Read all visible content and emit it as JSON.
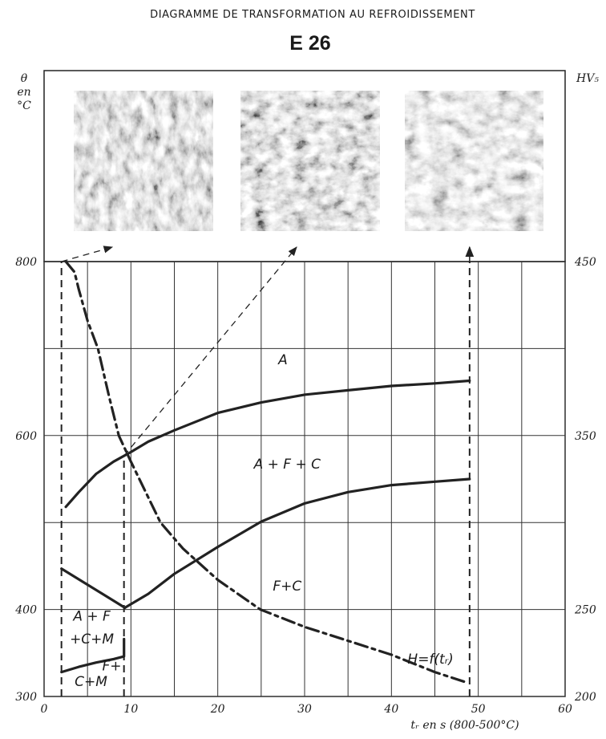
{
  "chart_data": {
    "type": "line",
    "title": "DIAGRAMME DE TRANSFORMATION AU REFROIDISSEMENT",
    "subtitle": "E 26",
    "ylabel": "θ en °C",
    "y2label": "HV₅",
    "xlabel": "tᵣ en s (800-500°C)",
    "xlim": [
      0,
      60
    ],
    "xticks": [
      0,
      10,
      20,
      30,
      40,
      50,
      60
    ],
    "xminorticks": [
      5,
      15,
      25,
      35,
      45,
      55
    ],
    "ylim": [
      300,
      800
    ],
    "yticks": [
      300,
      400,
      500,
      600,
      700,
      800
    ],
    "ytick_labels_shown": [
      300,
      400,
      600,
      800
    ],
    "y2lim": [
      200,
      450
    ],
    "y2ticks": [
      200,
      250,
      350,
      450
    ],
    "grid": true,
    "vlines": [
      2,
      9.2,
      49
    ],
    "series": [
      {
        "color": "#222222",
        "style": "solid",
        "x": [
          2.5,
          4,
          6,
          8,
          10,
          12,
          15,
          20,
          25,
          30,
          35,
          40,
          45,
          49
        ],
        "values": [
          518,
          535,
          556,
          570,
          581,
          593,
          606,
          626,
          638,
          647,
          652,
          657,
          660,
          663
        ]
      },
      {
        "color": "#222222",
        "style": "solid",
        "x": [
          9.3,
          12,
          15,
          20,
          25,
          30,
          35,
          40,
          45,
          49
        ],
        "values": [
          402,
          418,
          441,
          472,
          501,
          522,
          535,
          543,
          547,
          550
        ]
      },
      {
        "color": "#222222",
        "style": "solid",
        "x": [
          2,
          9.3
        ],
        "values": [
          447,
          402
        ]
      },
      {
        "color": "#222222",
        "style": "solid",
        "x": [
          2,
          4,
          6,
          8,
          9.2,
          9.2
        ],
        "values": [
          328,
          334,
          339,
          343,
          346,
          366
        ]
      },
      {
        "color": "#222222",
        "style": "dashdot",
        "axis": "y2",
        "x": [
          2.5,
          3.5,
          4,
          5,
          6.2,
          7.5,
          8.6,
          10,
          13.4,
          16,
          20,
          24.9,
          30,
          35,
          40,
          45,
          48.7
        ],
        "values": [
          450,
          444,
          434,
          416,
          400,
          372,
          350,
          335,
          300,
          285,
          267,
          250,
          240,
          232,
          224,
          214,
          208
        ]
      }
    ],
    "annotations": [
      "A",
      "A + F + C",
      "F+C",
      "A + F",
      "+C+M",
      "F+",
      "C+M",
      "H=f(tᵣ)"
    ]
  }
}
